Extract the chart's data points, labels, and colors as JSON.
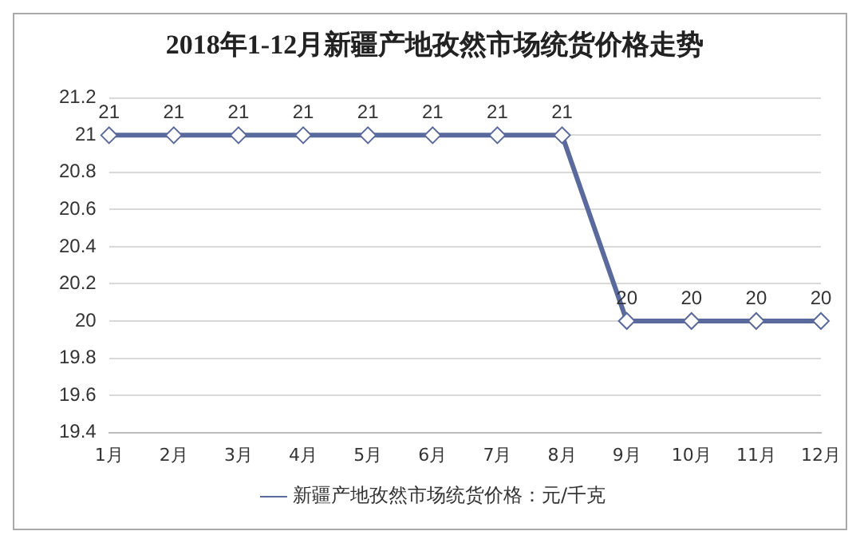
{
  "chart_data": {
    "type": "line",
    "title": "2018年1-12月新疆产地孜然市场统货价格走势",
    "categories": [
      "1月",
      "2月",
      "3月",
      "4月",
      "5月",
      "6月",
      "7月",
      "8月",
      "9月",
      "10月",
      "11月",
      "12月"
    ],
    "series": [
      {
        "name": "新疆产地孜然市场统货价格：元/千克",
        "color": "#5b6a9c",
        "values": [
          21,
          21,
          21,
          21,
          21,
          21,
          21,
          21,
          20,
          20,
          20,
          20
        ]
      }
    ],
    "ylim": [
      19.4,
      21.2
    ],
    "yticks": [
      19.4,
      19.6,
      19.8,
      20,
      20.2,
      20.4,
      20.6,
      20.8,
      21,
      21.2
    ],
    "grid": "y",
    "legend": "bottom",
    "marker": "diamond",
    "line_style": "solid",
    "data_labels": true
  }
}
